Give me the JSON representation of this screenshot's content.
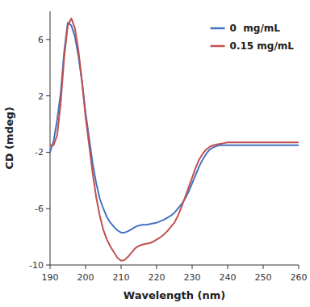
{
  "chart_data": {
    "type": "line",
    "xlabel": "Wavelength (nm)",
    "ylabel": "CD (mdeg)",
    "x": [
      190,
      191,
      192,
      193,
      194,
      195,
      196,
      197,
      198,
      199,
      200,
      201,
      202,
      203,
      204,
      205,
      206,
      207,
      208,
      209,
      210,
      211,
      212,
      213,
      214,
      215,
      216,
      217,
      218,
      219,
      220,
      221,
      222,
      223,
      224,
      225,
      226,
      227,
      228,
      229,
      230,
      231,
      232,
      233,
      234,
      235,
      236,
      237,
      238,
      239,
      240,
      241,
      242,
      243,
      244,
      245,
      246,
      247,
      248,
      249,
      250,
      251,
      252,
      253,
      254,
      255,
      256,
      257,
      258,
      259,
      260
    ],
    "xlim": [
      190,
      260
    ],
    "ylim": [
      -10,
      8
    ],
    "xticks": [
      190,
      200,
      210,
      220,
      230,
      240,
      250,
      260
    ],
    "yticks": [
      -10,
      -6,
      -2,
      2,
      6
    ],
    "grid": false,
    "legend": "upper right",
    "series": [
      {
        "name": "0  mg/mL",
        "color": "#4472C4",
        "values": [
          -2.0,
          -1.2,
          0.3,
          2.2,
          5.2,
          7.2,
          7.0,
          6.2,
          4.8,
          3.0,
          0.8,
          -1.0,
          -2.8,
          -4.2,
          -5.3,
          -6.0,
          -6.6,
          -7.0,
          -7.3,
          -7.55,
          -7.7,
          -7.7,
          -7.6,
          -7.45,
          -7.3,
          -7.2,
          -7.15,
          -7.15,
          -7.1,
          -7.05,
          -7.0,
          -6.9,
          -6.8,
          -6.65,
          -6.5,
          -6.3,
          -6.0,
          -5.7,
          -5.3,
          -4.8,
          -4.2,
          -3.6,
          -3.0,
          -2.5,
          -2.1,
          -1.8,
          -1.65,
          -1.55,
          -1.5,
          -1.5,
          -1.5,
          -1.5,
          -1.5,
          -1.5,
          -1.5,
          -1.5,
          -1.5,
          -1.5,
          -1.5,
          -1.5,
          -1.5,
          -1.5,
          -1.5,
          -1.5,
          -1.5,
          -1.5,
          -1.5,
          -1.5,
          -1.5,
          -1.5,
          -1.5
        ]
      },
      {
        "name": "0.15 mg/mL",
        "color": "#C0504D",
        "values": [
          -1.5,
          -1.5,
          -0.8,
          1.5,
          4.8,
          7.0,
          7.5,
          6.8,
          5.2,
          3.0,
          0.5,
          -1.5,
          -3.5,
          -5.2,
          -6.5,
          -7.5,
          -8.2,
          -8.7,
          -9.1,
          -9.5,
          -9.7,
          -9.65,
          -9.4,
          -9.1,
          -8.8,
          -8.65,
          -8.55,
          -8.5,
          -8.45,
          -8.35,
          -8.2,
          -8.05,
          -7.85,
          -7.6,
          -7.3,
          -7.0,
          -6.5,
          -5.9,
          -5.2,
          -4.5,
          -3.8,
          -3.1,
          -2.5,
          -2.1,
          -1.8,
          -1.6,
          -1.5,
          -1.45,
          -1.4,
          -1.35,
          -1.3,
          -1.3,
          -1.3,
          -1.3,
          -1.3,
          -1.3,
          -1.3,
          -1.3,
          -1.3,
          -1.3,
          -1.3,
          -1.3,
          -1.3,
          -1.3,
          -1.3,
          -1.3,
          -1.3,
          -1.3,
          -1.3,
          -1.3,
          -1.3
        ]
      }
    ]
  }
}
